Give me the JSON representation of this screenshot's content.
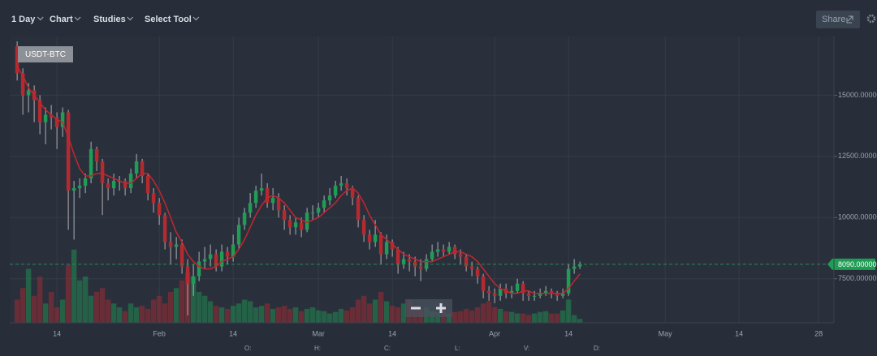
{
  "toolbar": {
    "items": [
      "1 Day",
      "Chart",
      "Studies",
      "Select Tool"
    ],
    "share": "Share"
  },
  "chart_data": {
    "type": "candlestick",
    "symbol": "USDT-BTC",
    "x": [
      6,
      7,
      8,
      9,
      10,
      11,
      12,
      13,
      14,
      15,
      16,
      17,
      18,
      19,
      20,
      21,
      22,
      23,
      24,
      25,
      26,
      27,
      28,
      29,
      30,
      31,
      32,
      33,
      34,
      35,
      36,
      37,
      38,
      39,
      40,
      41,
      42,
      43,
      44,
      45,
      46,
      47,
      48,
      49,
      50,
      51,
      52,
      53,
      54,
      55,
      56,
      57,
      58,
      59,
      60,
      61,
      62,
      63,
      64,
      65,
      66,
      67,
      68,
      69,
      70,
      71,
      72,
      73,
      74,
      75,
      76,
      77,
      78,
      79,
      80,
      81,
      82,
      83,
      84,
      85,
      86,
      87,
      88,
      89,
      90,
      91,
      92,
      93,
      94,
      95,
      96,
      97,
      98,
      99,
      100,
      101,
      102,
      103,
      104,
      105
    ],
    "open": [
      17000,
      15900,
      15000,
      15200,
      14800,
      13900,
      14200,
      14100,
      13700,
      14300,
      11100,
      11200,
      11300,
      11600,
      12800,
      12300,
      11400,
      11200,
      11500,
      11500,
      11200,
      11800,
      12300,
      11700,
      11000,
      10600,
      10100,
      9000,
      8800,
      8900,
      8000,
      7300,
      7600,
      8200,
      8300,
      8500,
      8000,
      8600,
      8400,
      8900,
      9700,
      10200,
      10600,
      11100,
      11200,
      10600,
      10800,
      10300,
      9900,
      9600,
      9800,
      9500,
      10200,
      10200,
      10400,
      10700,
      10900,
      11300,
      11400,
      11200,
      10800,
      9900,
      9300,
      9000,
      9300,
      8500,
      9000,
      8700,
      8100,
      8300,
      8200,
      8000,
      7900,
      8300,
      8600,
      8700,
      8600,
      8800,
      8500,
      8400,
      8000,
      7900,
      7600,
      7000,
      6900,
      6800,
      7100,
      6900,
      7000,
      7300,
      6900,
      6800,
      6800,
      6900,
      7000,
      6900,
      6800,
      6900,
      7900,
      8000
    ],
    "high": [
      17200,
      16100,
      15500,
      15400,
      15000,
      14500,
      14600,
      14300,
      14500,
      14400,
      11500,
      11600,
      11800,
      13100,
      12900,
      12400,
      11600,
      11800,
      11700,
      11600,
      12000,
      12600,
      12400,
      11800,
      11200,
      10800,
      10200,
      9400,
      9200,
      9100,
      8300,
      8100,
      8600,
      8800,
      8900,
      8700,
      8900,
      8800,
      9300,
      10000,
      10400,
      11000,
      11300,
      11800,
      11400,
      11200,
      11000,
      10500,
      10100,
      10000,
      10000,
      10400,
      10500,
      10600,
      10900,
      11200,
      11500,
      11700,
      11600,
      11300,
      10900,
      10100,
      9500,
      9900,
      9400,
      9300,
      9100,
      8800,
      8600,
      8500,
      8400,
      8300,
      8500,
      8900,
      9000,
      8900,
      9000,
      8900,
      8700,
      8500,
      8200,
      8000,
      7700,
      7200,
      7100,
      7300,
      7300,
      7200,
      7500,
      7400,
      7000,
      7000,
      7100,
      7200,
      7100,
      7000,
      7100,
      8100,
      8300,
      8200
    ],
    "low": [
      15600,
      14200,
      14300,
      13900,
      13400,
      13000,
      13600,
      12800,
      13300,
      9500,
      9100,
      10800,
      11000,
      11400,
      11900,
      10100,
      10700,
      10900,
      11100,
      10900,
      11000,
      11600,
      11400,
      10700,
      10200,
      9700,
      8700,
      8100,
      8300,
      7700,
      6000,
      6800,
      7400,
      7900,
      8000,
      7800,
      7800,
      8100,
      8200,
      8700,
      9500,
      10000,
      10400,
      10900,
      10400,
      10300,
      10000,
      9500,
      9300,
      9300,
      9200,
      9400,
      9900,
      10000,
      10200,
      10500,
      10800,
      11100,
      10900,
      10500,
      9600,
      9000,
      8700,
      8800,
      8100,
      8300,
      8400,
      7700,
      7900,
      7800,
      7600,
      7400,
      7800,
      8200,
      8400,
      8400,
      8500,
      8300,
      8100,
      7800,
      7600,
      7300,
      6700,
      6600,
      6500,
      6600,
      6700,
      6700,
      6900,
      6600,
      6600,
      6600,
      6700,
      6800,
      6700,
      6600,
      6700,
      6800,
      7700,
      7900
    ],
    "close": [
      15900,
      15000,
      15200,
      14800,
      13900,
      14200,
      14100,
      13700,
      14300,
      11100,
      11200,
      11300,
      11600,
      12800,
      12300,
      11400,
      11200,
      11500,
      11500,
      11200,
      11800,
      12300,
      11700,
      11000,
      10600,
      10100,
      9000,
      8800,
      8900,
      8000,
      7300,
      7600,
      8200,
      8300,
      8500,
      8000,
      8600,
      8400,
      8900,
      9700,
      10200,
      10600,
      11100,
      11200,
      10600,
      10800,
      10300,
      9900,
      9600,
      9800,
      9500,
      10200,
      10200,
      10400,
      10700,
      10900,
      11300,
      11400,
      11200,
      10800,
      9900,
      9300,
      9000,
      9300,
      8500,
      9000,
      8700,
      8100,
      8300,
      8200,
      8000,
      7900,
      8300,
      8600,
      8700,
      8600,
      8800,
      8500,
      8400,
      8000,
      7900,
      7600,
      7000,
      6900,
      6800,
      7100,
      6900,
      7000,
      7300,
      6900,
      6800,
      6800,
      6900,
      7000,
      6900,
      6800,
      6900,
      7900,
      8000,
      8090
    ],
    "volume": [
      30,
      45,
      70,
      35,
      60,
      25,
      40,
      20,
      30,
      75,
      95,
      55,
      60,
      35,
      40,
      45,
      30,
      25,
      20,
      15,
      25,
      20,
      22,
      18,
      30,
      35,
      25,
      40,
      45,
      55,
      65,
      60,
      40,
      35,
      28,
      22,
      20,
      18,
      22,
      25,
      30,
      28,
      20,
      22,
      25,
      18,
      20,
      22,
      18,
      20,
      15,
      18,
      20,
      16,
      15,
      12,
      14,
      18,
      16,
      20,
      30,
      35,
      25,
      30,
      40,
      28,
      22,
      20,
      25,
      30,
      22,
      18,
      20,
      15,
      14,
      16,
      12,
      14,
      15,
      18,
      16,
      20,
      25,
      28,
      20,
      18,
      15,
      14,
      12,
      12,
      10,
      12,
      14,
      15,
      12,
      12,
      16,
      30,
      10,
      5
    ],
    "ma": {
      "color": "#c4262d",
      "values": [
        16200,
        15800,
        15300,
        15000,
        14700,
        14400,
        14200,
        14000,
        13900,
        13300,
        12600,
        12000,
        11700,
        11700,
        11800,
        11800,
        11700,
        11600,
        11500,
        11400,
        11400,
        11600,
        11800,
        11800,
        11500,
        11100,
        10600,
        10000,
        9400,
        9000,
        8500,
        8200,
        8000,
        7900,
        7900,
        8000,
        8200,
        8300,
        8400,
        8700,
        9100,
        9600,
        10100,
        10500,
        10800,
        10900,
        10800,
        10600,
        10300,
        10000,
        9900,
        9800,
        9900,
        10000,
        10200,
        10400,
        10600,
        10900,
        11100,
        11200,
        11000,
        10600,
        10100,
        9700,
        9300,
        9100,
        8900,
        8700,
        8500,
        8400,
        8300,
        8200,
        8200,
        8200,
        8300,
        8400,
        8500,
        8600,
        8600,
        8500,
        8400,
        8200,
        7900,
        7600,
        7300,
        7100,
        7000,
        6900,
        6900,
        7000,
        7000,
        6900,
        6900,
        6900,
        6900,
        6900,
        6900,
        7100,
        7400,
        7700
      ]
    },
    "up_color": "#1f9d55",
    "down_color": "#b52a2f",
    "xlim": [
      4.7,
      149.7
    ],
    "ylim": [
      5700,
      17400
    ],
    "xticks": [
      {
        "value": 13,
        "label": "14"
      },
      {
        "value": 31,
        "label": "Feb"
      },
      {
        "value": 44,
        "label": "14"
      },
      {
        "value": 59,
        "label": "Mar"
      },
      {
        "value": 72,
        "label": "14"
      },
      {
        "value": 90,
        "label": "Apr"
      },
      {
        "value": 103,
        "label": "14"
      },
      {
        "value": 120,
        "label": "May"
      },
      {
        "value": 133,
        "label": "14"
      },
      {
        "value": 147,
        "label": "28"
      }
    ],
    "yticks": [
      {
        "value": 7500,
        "label": "7500.00000"
      },
      {
        "value": 10000,
        "label": "10000.00000"
      },
      {
        "value": 12500,
        "label": "12500.00000"
      },
      {
        "value": 15000,
        "label": "15000.00000"
      }
    ],
    "last_price": {
      "value": 8090,
      "label": "8090.00000"
    },
    "grid": true
  },
  "status_bar": [
    "O:",
    "H:",
    "C:",
    "L:",
    "V:",
    "D:"
  ]
}
